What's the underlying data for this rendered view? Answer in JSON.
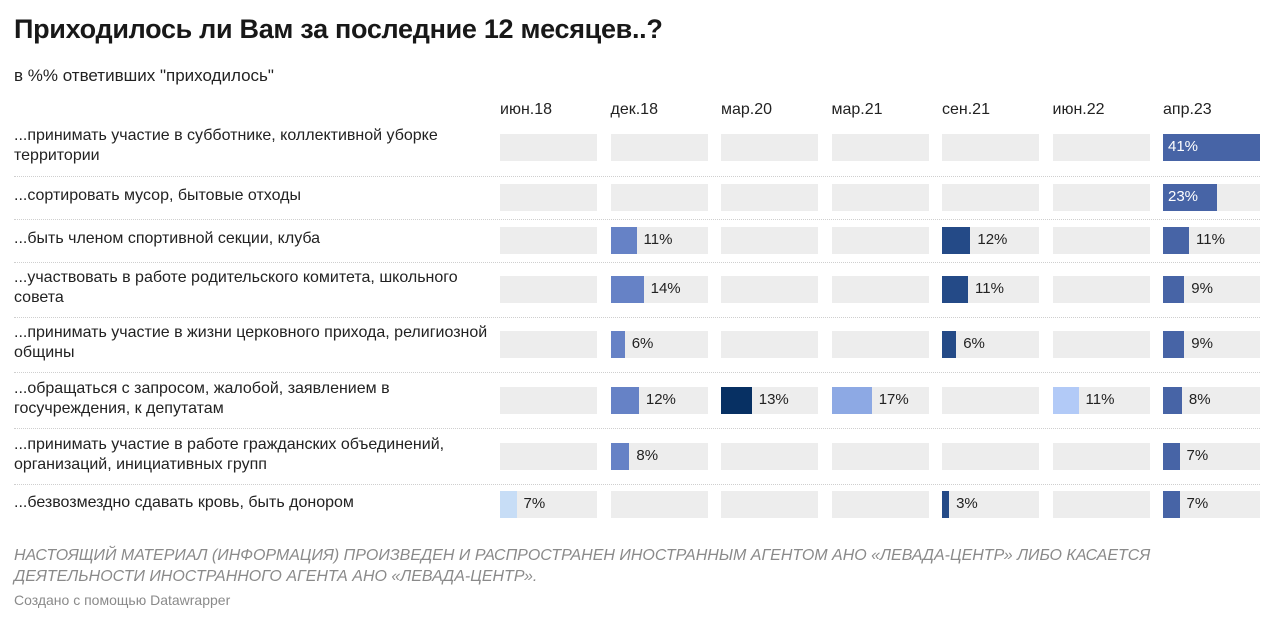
{
  "header": {
    "title": "Приходилось ли Вам за последние 12 месяцев..?",
    "subtitle": "в %% ответивших \"приходилось\""
  },
  "colors": {
    "cell_background": "#ededed",
    "label_on_bar": "#ffffff",
    "label_off_bar": "#222222",
    "series": {
      "июн.18": "#c7ddf6",
      "дек.18": "#6682c6",
      "мар.20": "#073063",
      "мар.21": "#8da9e4",
      "сен.21": "#244a87",
      "июн.22": "#b2caf7",
      "апр.23": "#4764a6"
    }
  },
  "chart_data": {
    "type": "bar",
    "subtype": "column-grid",
    "title": "Приходилось ли Вам за последние 12 месяцев..?",
    "subtitle": "в %% ответивших \"приходилось\"",
    "xlim": [
      0,
      41
    ],
    "grid": false,
    "legend": "none",
    "columns": [
      "июн.18",
      "дек.18",
      "мар.20",
      "мар.21",
      "сен.21",
      "июн.22",
      "апр.23"
    ],
    "rows": [
      "...принимать участие в субботнике, коллективной уборке территории",
      "...сортировать мусор, бытовые отходы",
      "...быть членом спортивной секции, клуба",
      "...участвовать в работе родительского комитета, школьного совета",
      "...принимать участие в жизни церковного прихода, религиозной общины",
      "...обращаться с запросом, жалобой, заявлением в госучреждения, к депутатам",
      "...принимать участие в работе гражданских объединений, организаций, инициативных групп",
      "...безвозмездно сдавать кровь, быть донором"
    ],
    "series": [
      {
        "name": "июн.18",
        "values": [
          null,
          null,
          null,
          null,
          null,
          null,
          null,
          7
        ]
      },
      {
        "name": "дек.18",
        "values": [
          null,
          null,
          11,
          14,
          6,
          12,
          8,
          null
        ]
      },
      {
        "name": "мар.20",
        "values": [
          null,
          null,
          null,
          null,
          null,
          13,
          null,
          null
        ]
      },
      {
        "name": "мар.21",
        "values": [
          null,
          null,
          null,
          null,
          null,
          17,
          null,
          null
        ]
      },
      {
        "name": "сен.21",
        "values": [
          null,
          null,
          12,
          11,
          6,
          null,
          null,
          3
        ]
      },
      {
        "name": "июн.22",
        "values": [
          null,
          null,
          null,
          null,
          null,
          11,
          null,
          null
        ]
      },
      {
        "name": "апр.23",
        "values": [
          41,
          23,
          11,
          9,
          9,
          8,
          7,
          7
        ]
      }
    ],
    "value_suffix": "%"
  },
  "footer": {
    "note": "НАСТОЯЩИЙ МАТЕРИАЛ (ИНФОРМАЦИЯ) ПРОИЗВЕДЕН И РАСПРОСТРАНЕН ИНОСТРАННЫМ АГЕНТОМ АНО «ЛЕВАДА-ЦЕНТР» ЛИБО КАСАЕТСЯ ДЕЯТЕЛЬНОСТИ ИНОСТРАННОГО АГЕНТА АНО «ЛЕВАДА-ЦЕНТР».",
    "credit": "Создано с помощью Datawrapper"
  }
}
